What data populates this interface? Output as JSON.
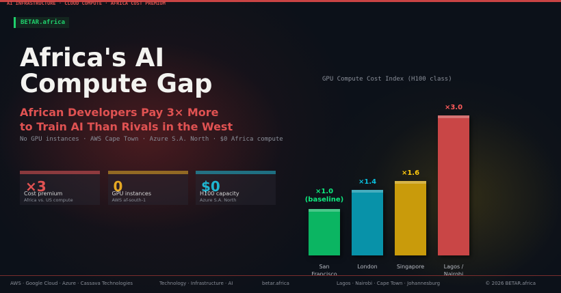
{
  "topline": "AI INFRASTRUCTURE · CLOUD COMPUTE · AFRICA COST PREMIUM",
  "badge": "BETAR.africa",
  "header": {
    "title_lines": [
      "Africa's AI",
      "Compute Gap"
    ],
    "subtitle_lines": [
      "African Developers Pay 3× More",
      "to Train AI Than Rivals in the West"
    ],
    "tagline": "No GPU instances · AWS Cape Town · Azure S.A. North · $0 Africa compute"
  },
  "cards": [
    {
      "value": "×3",
      "label": "Cost premium",
      "note": "Africa vs. US compute",
      "color": "#e05252"
    },
    {
      "value": "0",
      "label": "GPU instances",
      "note": "AWS af-south-1",
      "color": "#e5a823"
    },
    {
      "value": "$0",
      "label": "H100 capacity",
      "note": "Azure S.A. North",
      "color": "#1fb5d0"
    }
  ],
  "chart_data": {
    "type": "bar",
    "title": "GPU Compute Cost Index (H100 class)",
    "categories": [
      "San Francisco",
      "London",
      "Singapore",
      "Lagos / Nairobi"
    ],
    "values": [
      1.0,
      1.4,
      1.6,
      3.0
    ],
    "value_labels": [
      "×1.0",
      "×1.4",
      "×1.6",
      "×3.0"
    ],
    "annotation": "(baseline)",
    "colors": [
      "#0bb562",
      "#0892a9",
      "#c99b0b",
      "#c94646"
    ],
    "ylim": [
      0,
      3.0
    ]
  },
  "footer": [
    "AWS · Google Cloud · Azure · Cassava Technologies",
    "Technology · Infrastructure · AI",
    "betar.africa",
    "Lagos · Nairobi · Cape Town · Johannesburg",
    "© 2026 BETAR.africa"
  ]
}
